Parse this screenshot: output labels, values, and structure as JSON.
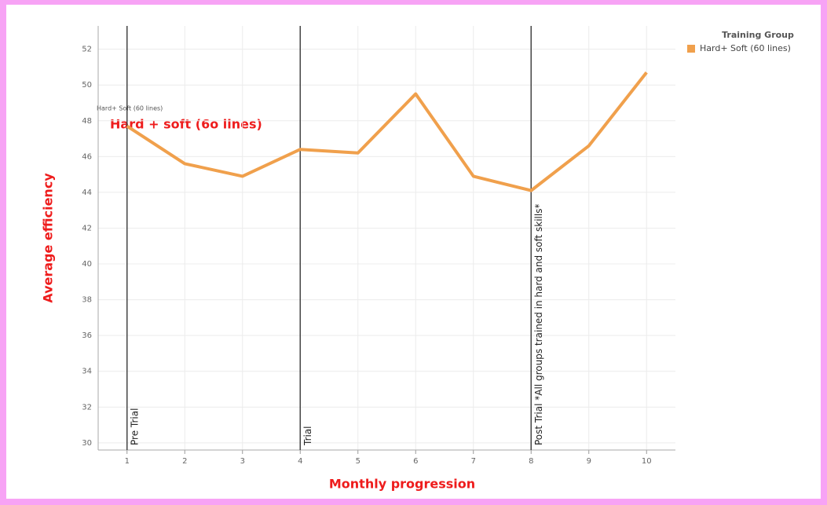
{
  "chart_data": {
    "type": "line",
    "x": [
      1,
      2,
      3,
      4,
      5,
      6,
      7,
      8,
      9,
      10
    ],
    "series": [
      {
        "name": "Hard+ Soft (60 lines)",
        "color": "#f0a04c",
        "values": [
          47.7,
          45.6,
          44.9,
          46.4,
          46.2,
          49.5,
          44.9,
          44.1,
          46.6,
          50.7
        ]
      }
    ],
    "xlim": [
      0.5,
      10.5
    ],
    "xticks": [
      1,
      2,
      3,
      4,
      5,
      6,
      7,
      8,
      9,
      10
    ],
    "ylim": [
      29.6,
      53.3
    ],
    "yticks": [
      30,
      32,
      34,
      36,
      38,
      40,
      42,
      44,
      46,
      48,
      50,
      52
    ],
    "x_label": "Monthly progression",
    "y_label": "Average efficiency",
    "legend_title": "Training Group",
    "legend_position": "top-right",
    "grid": true,
    "reference_lines": [
      {
        "x": 1,
        "label": "Pre Trial"
      },
      {
        "x": 4,
        "label": "Trial"
      },
      {
        "x": 8,
        "label": "Post Trial *All groups trained in hard and soft skills*"
      }
    ],
    "annotations": [
      "Hard+ Soft (60 lines)",
      "Hard + soft (6o lines)"
    ]
  }
}
